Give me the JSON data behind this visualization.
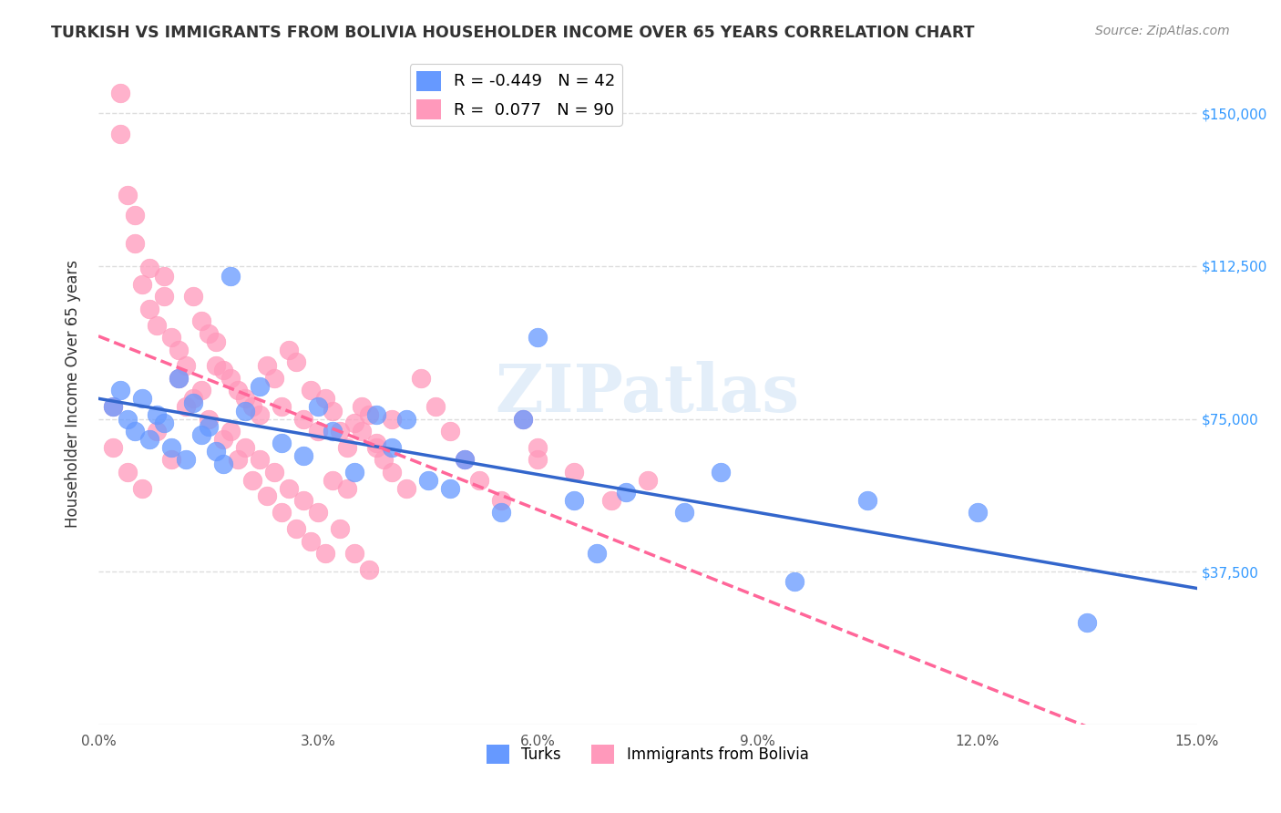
{
  "title": "TURKISH VS IMMIGRANTS FROM BOLIVIA HOUSEHOLDER INCOME OVER 65 YEARS CORRELATION CHART",
  "source": "Source: ZipAtlas.com",
  "ylabel": "Householder Income Over 65 years",
  "ytick_labels": [
    "$37,500",
    "$75,000",
    "$112,500",
    "$150,000"
  ],
  "ytick_values": [
    37500,
    75000,
    112500,
    150000
  ],
  "ylim": [
    0,
    162500
  ],
  "xlim": [
    0.0,
    0.15
  ],
  "legend_blue_r": "-0.449",
  "legend_blue_n": "42",
  "legend_pink_r": "0.077",
  "legend_pink_n": "90",
  "blue_color": "#6699ff",
  "pink_color": "#ff99bb",
  "blue_line_color": "#3366cc",
  "pink_line_color": "#ff6699",
  "watermark": "ZIPatlas",
  "turks_x": [
    0.002,
    0.003,
    0.004,
    0.005,
    0.006,
    0.007,
    0.008,
    0.009,
    0.01,
    0.011,
    0.012,
    0.013,
    0.014,
    0.015,
    0.016,
    0.017,
    0.018,
    0.02,
    0.022,
    0.025,
    0.028,
    0.03,
    0.032,
    0.035,
    0.038,
    0.04,
    0.042,
    0.045,
    0.048,
    0.05,
    0.055,
    0.058,
    0.06,
    0.065,
    0.068,
    0.072,
    0.08,
    0.085,
    0.095,
    0.105,
    0.12,
    0.135
  ],
  "turks_y": [
    78000,
    82000,
    75000,
    72000,
    80000,
    70000,
    76000,
    74000,
    68000,
    85000,
    65000,
    79000,
    71000,
    73000,
    67000,
    64000,
    110000,
    77000,
    83000,
    69000,
    66000,
    78000,
    72000,
    62000,
    76000,
    68000,
    75000,
    60000,
    58000,
    65000,
    52000,
    75000,
    95000,
    55000,
    42000,
    57000,
    52000,
    62000,
    35000,
    55000,
    52000,
    25000
  ],
  "bolivia_x": [
    0.002,
    0.003,
    0.004,
    0.005,
    0.006,
    0.007,
    0.008,
    0.009,
    0.01,
    0.011,
    0.012,
    0.013,
    0.014,
    0.015,
    0.016,
    0.017,
    0.018,
    0.019,
    0.02,
    0.021,
    0.022,
    0.023,
    0.024,
    0.025,
    0.026,
    0.027,
    0.028,
    0.029,
    0.03,
    0.031,
    0.032,
    0.033,
    0.034,
    0.035,
    0.036,
    0.037,
    0.038,
    0.039,
    0.04,
    0.042,
    0.044,
    0.046,
    0.048,
    0.05,
    0.052,
    0.055,
    0.058,
    0.06,
    0.065,
    0.07,
    0.002,
    0.004,
    0.006,
    0.008,
    0.01,
    0.012,
    0.014,
    0.016,
    0.018,
    0.02,
    0.022,
    0.024,
    0.026,
    0.028,
    0.03,
    0.032,
    0.034,
    0.036,
    0.038,
    0.04,
    0.003,
    0.005,
    0.007,
    0.009,
    0.011,
    0.013,
    0.015,
    0.017,
    0.019,
    0.021,
    0.023,
    0.025,
    0.027,
    0.029,
    0.031,
    0.033,
    0.035,
    0.037,
    0.06,
    0.075
  ],
  "bolivia_y": [
    78000,
    145000,
    130000,
    118000,
    108000,
    102000,
    98000,
    110000,
    95000,
    92000,
    88000,
    105000,
    99000,
    96000,
    94000,
    87000,
    85000,
    82000,
    80000,
    78000,
    76000,
    88000,
    85000,
    78000,
    92000,
    89000,
    75000,
    82000,
    72000,
    80000,
    77000,
    72000,
    68000,
    74000,
    78000,
    76000,
    69000,
    65000,
    62000,
    58000,
    85000,
    78000,
    72000,
    65000,
    60000,
    55000,
    75000,
    68000,
    62000,
    55000,
    68000,
    62000,
    58000,
    72000,
    65000,
    78000,
    82000,
    88000,
    72000,
    68000,
    65000,
    62000,
    58000,
    55000,
    52000,
    60000,
    58000,
    72000,
    68000,
    75000,
    155000,
    125000,
    112000,
    105000,
    85000,
    80000,
    75000,
    70000,
    65000,
    60000,
    56000,
    52000,
    48000,
    45000,
    42000,
    48000,
    42000,
    38000,
    65000,
    60000
  ]
}
